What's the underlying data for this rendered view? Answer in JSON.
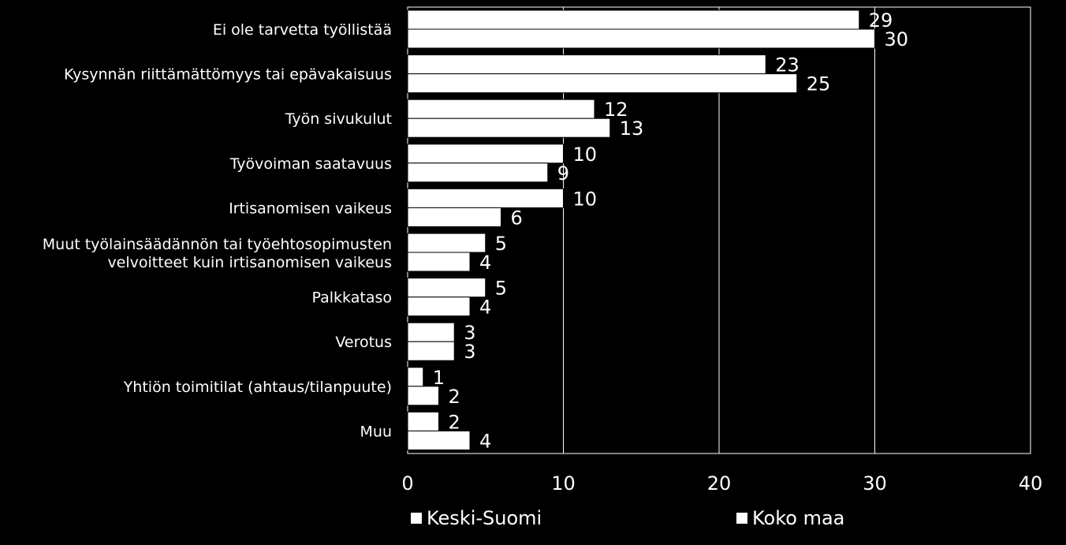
{
  "chart_data": {
    "type": "bar",
    "orientation": "horizontal",
    "categories": [
      "Ei ole tarvetta työllistää",
      "Kysynnän riittämättömyys tai epävakaisuus",
      "Työn sivukulut",
      "Työvoiman saatavuus",
      "Irtisanomisen vaikeus",
      "Muut työlainsäädännön tai työehtosopimusten velvoitteet kuin irtisanomisen vaikeus",
      "Palkkataso",
      "Verotus",
      "Yhtiön toimitilat (ahtaus/tilanpuute)",
      "Muu"
    ],
    "series": [
      {
        "name": "Keski-Suomi",
        "values": [
          29,
          23,
          12,
          10,
          10,
          5,
          5,
          3,
          1,
          2
        ]
      },
      {
        "name": "Koko maa",
        "values": [
          30,
          25,
          13,
          9,
          6,
          4,
          4,
          3,
          2,
          4
        ]
      }
    ],
    "data_labels": {
      "Keski-Suomi": [
        "29",
        "23",
        "12",
        "10",
        "10",
        "5",
        "5",
        "3",
        "1",
        "2"
      ],
      "Koko maa": [
        "30",
        "25",
        "13",
        "9",
        "6",
        "4",
        "4",
        "3",
        "2",
        "4"
      ]
    },
    "xlim": [
      0,
      40
    ],
    "xticks": [
      "0",
      "10",
      "20",
      "30",
      "40"
    ],
    "grid": true,
    "legend_position": "bottom",
    "colors": {
      "background": "#000000",
      "bars": "#ffffff",
      "bar_edge": "#000000",
      "grid": "#ffffff",
      "text": "#ffffff"
    }
  }
}
